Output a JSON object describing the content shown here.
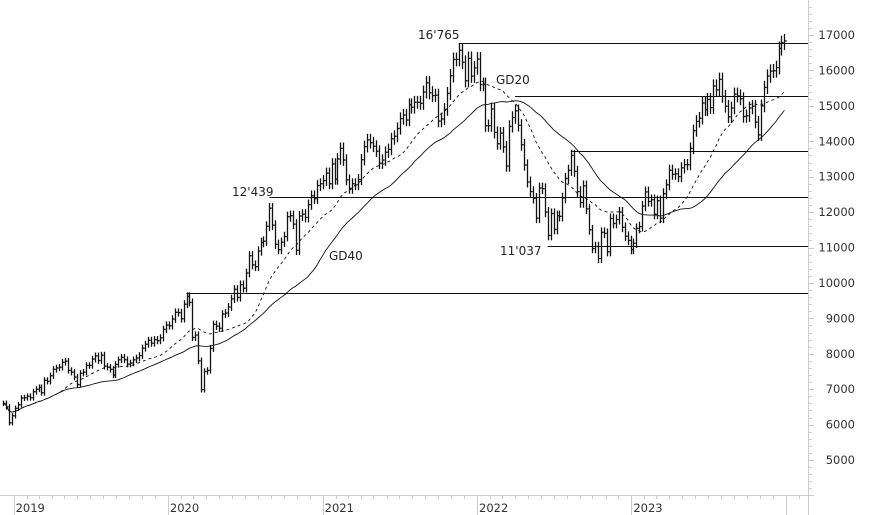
{
  "chart_data": {
    "type": "ohlc-bar",
    "frequency": "weekly",
    "x_start": "2018-12-07",
    "x_tick_labels": [
      "2019",
      "2020",
      "2021",
      "2022",
      "2023"
    ],
    "y_tick_labels": [
      "5000",
      "6000",
      "7000",
      "8000",
      "9000",
      "10000",
      "11000",
      "12000",
      "13000",
      "14000",
      "15000",
      "16000",
      "17000"
    ],
    "ylim": [
      4000,
      18000
    ],
    "grid": false,
    "closes": [
      6600,
      6500,
      6050,
      6250,
      6460,
      6560,
      6750,
      6760,
      6800,
      6760,
      6930,
      7000,
      7050,
      6900,
      7250,
      7220,
      7380,
      7560,
      7600,
      7620,
      7760,
      7790,
      7530,
      7480,
      7340,
      7130,
      7450,
      7480,
      7670,
      7670,
      7850,
      7940,
      7810,
      7960,
      7650,
      7620,
      7560,
      7400,
      7700,
      7830,
      7900,
      7830,
      7710,
      7740,
      7830,
      7880,
      7950,
      8160,
      8270,
      8380,
      8300,
      8400,
      8370,
      8450,
      8690,
      8810,
      8790,
      8980,
      9170,
      9160,
      8990,
      9400,
      9620,
      9450,
      8460,
      8530,
      7800,
      6990,
      7500,
      7530,
      8150,
      8830,
      8780,
      8720,
      9120,
      9150,
      9320,
      9550,
      9820,
      9590,
      9950,
      9850,
      10280,
      10770,
      10510,
      10460,
      10900,
      11140,
      11180,
      11600,
      12110,
      11630,
      11090,
      10940,
      11150,
      11310,
      11870,
      11900,
      11660,
      10920,
      11890,
      11940,
      11850,
      12210,
      12460,
      12380,
      12750,
      12800,
      12890,
      13100,
      12800,
      13360,
      12930,
      13500,
      13800,
      13470,
      12910,
      12670,
      12800,
      12770,
      12920,
      13480,
      13850,
      14040,
      13960,
      13860,
      13720,
      13380,
      13470,
      13690,
      13770,
      14070,
      14140,
      14360,
      14640,
      14740,
      14600,
      15030,
      14960,
      15100,
      15100,
      15070,
      15390,
      15650,
      15370,
      15290,
      15300,
      14570,
      14630,
      14900,
      15350,
      15850,
      16310,
      16310,
      16570,
      16230,
      15710,
      16340,
      15840,
      16070,
      16320,
      15600,
      15610,
      14440,
      14440,
      14910,
      14250,
      13930,
      14230,
      13840,
      13300,
      14420,
      14670,
      14860,
      14450,
      13900,
      13330,
      12850,
      12580,
      12390,
      11830,
      12680,
      12660,
      12000,
      11340,
      11960,
      11510,
      11900,
      11880,
      12400,
      12950,
      13180,
      13600,
      13150,
      12580,
      12270,
      12740,
      12090,
      11500,
      10970,
      11030,
      10690,
      11430,
      11400,
      10880,
      11820,
      11680,
      11790,
      12000,
      11570,
      11320,
      11200,
      10940,
      11120,
      11540,
      11590,
      12170,
      12570,
      12300,
      12350,
      11940,
      12320,
      11830,
      12520,
      12770,
      13180,
      13070,
      13080,
      13000,
      13250,
      13340,
      13340,
      13800,
      14300,
      14560,
      14650,
      15080,
      14890,
      15180,
      14950,
      15560,
      15450,
      15750,
      15270,
      14990,
      14690,
      14940,
      15330,
      15280,
      15200,
      14700,
      14720,
      14940,
      14990,
      14540,
      14180,
      15000,
      15520,
      15840,
      15980,
      15990,
      16080,
      16620,
      16780,
      16830
    ],
    "moving_averages": [
      {
        "name": "GD20",
        "period": 20,
        "style": "dashed"
      },
      {
        "name": "GD40",
        "period": 40,
        "style": "solid"
      }
    ],
    "levels": [
      {
        "value": 16765,
        "from": "2021-11-19",
        "label": "16'765"
      },
      {
        "value": 15265,
        "from": "2022-04-01",
        "label": ""
      },
      {
        "value": 13720,
        "from": "2022-08-12",
        "label": ""
      },
      {
        "value": 12439,
        "from": "2020-08-28",
        "label": "12'439"
      },
      {
        "value": 11037,
        "from": "2022-06-17",
        "label": "11'037"
      },
      {
        "value": 9720,
        "from": "2020-02-14",
        "label": ""
      }
    ],
    "colors": {
      "bars": "#111111",
      "levels": "#111111",
      "axis": "#cccccc",
      "text": "#333333"
    }
  }
}
